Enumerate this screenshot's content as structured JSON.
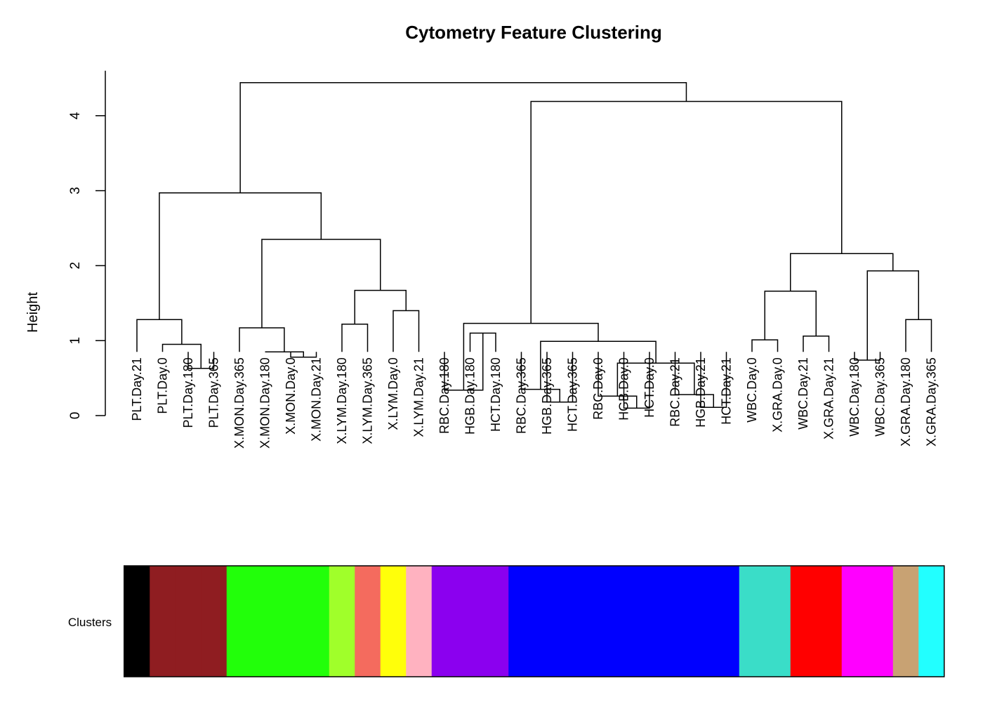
{
  "chart_data": {
    "type": "dendrogram",
    "title": "Cytometry Feature Clustering",
    "ylabel": "Height",
    "ylim": [
      0,
      4.6
    ],
    "yticks": [
      0,
      1,
      2,
      3,
      4
    ],
    "leaves": [
      "PLT.Day.21",
      "PLT.Day.0",
      "PLT.Day.180",
      "PLT.Day.365",
      "X.MON.Day.365",
      "X.MON.Day.180",
      "X.MON.Day.0",
      "X.MON.Day.21",
      "X.LYM.Day.180",
      "X.LYM.Day.365",
      "X.LYM.Day.0",
      "X.LYM.Day.21",
      "RBC.Day.180",
      "HGB.Day.180",
      "HCT.Day.180",
      "RBC.Day.365",
      "HGB.Day.365",
      "HCT.Day.365",
      "RBC.Day.0",
      "HGB.Day.0",
      "HCT.Day.0",
      "RBC.Day.21",
      "HGB.Day.21",
      "HCT.Day.21",
      "WBC.Day.0",
      "X.GRA.Day.0",
      "WBC.Day.21",
      "X.GRA.Day.21",
      "WBC.Day.180",
      "WBC.Day.365",
      "X.GRA.Day.180",
      "X.GRA.Day.365"
    ],
    "leaf_height": 0.85,
    "merges": [
      {
        "id": "m1",
        "left": 2,
        "right": 3,
        "height": 0.63
      },
      {
        "id": "m2",
        "left": 1,
        "right": "m1",
        "height": 0.95
      },
      {
        "id": "m3",
        "left": 0,
        "right": "m2",
        "height": 1.28
      },
      {
        "id": "m4",
        "left": 6,
        "right": 7,
        "height": 0.78
      },
      {
        "id": "m5",
        "left": 5,
        "right": "m4",
        "height": 0.85
      },
      {
        "id": "m6",
        "left": 4,
        "right": "m5",
        "height": 1.17
      },
      {
        "id": "m7",
        "left": 8,
        "right": 9,
        "height": 1.22
      },
      {
        "id": "m8",
        "left": 10,
        "right": 11,
        "height": 1.4
      },
      {
        "id": "m9",
        "left": "m7",
        "right": "m8",
        "height": 1.67
      },
      {
        "id": "m10",
        "left": "m6",
        "right": "m9",
        "height": 2.35
      },
      {
        "id": "m11",
        "left": "m3",
        "right": "m10",
        "height": 2.97
      },
      {
        "id": "m12",
        "left": 13,
        "right": 14,
        "height": 1.1
      },
      {
        "id": "m13",
        "left": 12,
        "right": "m12",
        "height": 0.34
      },
      {
        "id": "m14",
        "left": 16,
        "right": 17,
        "height": 0.18
      },
      {
        "id": "m15",
        "left": 15,
        "right": "m14",
        "height": 0.35
      },
      {
        "id": "m16",
        "left": 19,
        "right": 20,
        "height": 0.1
      },
      {
        "id": "m17",
        "left": 18,
        "right": "m16",
        "height": 0.26
      },
      {
        "id": "m18",
        "left": 22,
        "right": 23,
        "height": 0.11
      },
      {
        "id": "m19",
        "left": 21,
        "right": "m18",
        "height": 0.28
      },
      {
        "id": "m20",
        "left": "m17",
        "right": "m19",
        "height": 0.7
      },
      {
        "id": "m21",
        "left": "m15",
        "right": "m20",
        "height": 0.99
      },
      {
        "id": "m22",
        "left": "m13",
        "right": "m21",
        "height": 1.23
      },
      {
        "id": "m23",
        "left": 24,
        "right": 25,
        "height": 1.01
      },
      {
        "id": "m24",
        "left": 26,
        "right": 27,
        "height": 1.06
      },
      {
        "id": "m25",
        "left": "m23",
        "right": "m24",
        "height": 1.66
      },
      {
        "id": "m26",
        "left": 28,
        "right": 29,
        "height": 0.74
      },
      {
        "id": "m27",
        "left": 30,
        "right": 31,
        "height": 1.28
      },
      {
        "id": "m28",
        "left": "m26",
        "right": "m27",
        "height": 1.93
      },
      {
        "id": "m29",
        "left": "m25",
        "right": "m28",
        "height": 2.16
      },
      {
        "id": "m30",
        "left": "m22",
        "right": "m29",
        "height": 4.19
      },
      {
        "id": "m31",
        "left": "m11",
        "right": "m30",
        "height": 4.44
      }
    ],
    "cluster_band": {
      "label": "Clusters",
      "colors": [
        "#000000",
        "#8F1D21",
        "#8F1D21",
        "#8F1D21",
        "#22FF0A",
        "#22FF0A",
        "#22FF0A",
        "#22FF0A",
        "#A0FF2A",
        "#F46B5E",
        "#FFFF0A",
        "#FFB2C0",
        "#8B00EF",
        "#8B00EF",
        "#8B00EF",
        "#0000FF",
        "#0000FF",
        "#0000FF",
        "#0000FF",
        "#0000FF",
        "#0000FF",
        "#0000FF",
        "#0000FF",
        "#0000FF",
        "#3ADDC8",
        "#3ADDC8",
        "#FF0000",
        "#FF0000",
        "#FF00FF",
        "#FF00FF",
        "#C8A273",
        "#22FFFF"
      ]
    }
  }
}
